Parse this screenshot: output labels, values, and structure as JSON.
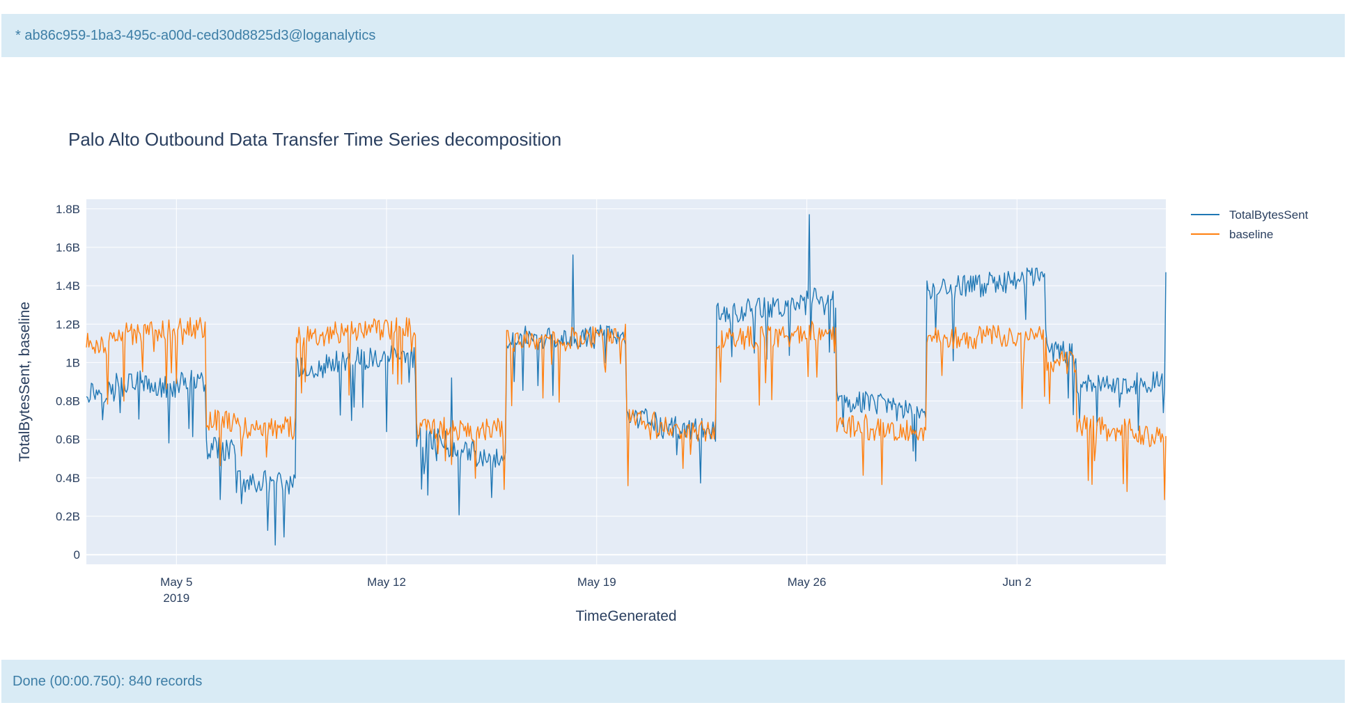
{
  "header": {
    "connection_label": "* ab86c959-1ba3-495c-a00d-ced30d8825d3@loganalytics"
  },
  "footer": {
    "status_text": "Done (00:00.750): 840 records"
  },
  "colors": {
    "plot_background": "#e5ecf6",
    "grid": "#ffffff",
    "text": "#2a3f5f",
    "series_total": "#1f77b4",
    "series_baseline": "#ff7f0e",
    "bar_background": "#d9ebf5",
    "bar_text": "#3d7ea6"
  },
  "chart_data": {
    "type": "line",
    "title": "Palo Alto Outbound Data Transfer Time Series decomposition",
    "xlabel": "TimeGenerated",
    "ylabel": "TotalBytesSent, baseline",
    "x_range": [
      "2019-05-02T00:00",
      "2019-06-06T23:00"
    ],
    "x_interval_hours": 1,
    "ylim": [
      -50000000,
      1850000000
    ],
    "y_ticks": [
      0,
      200000000,
      400000000,
      600000000,
      800000000,
      1000000000,
      1200000000,
      1400000000,
      1600000000,
      1800000000
    ],
    "y_tick_labels": [
      "0",
      "0.2B",
      "0.4B",
      "0.6B",
      "0.8B",
      "1B",
      "1.2B",
      "1.4B",
      "1.6B",
      "1.8B"
    ],
    "x_ticks": [
      "2019-05-05",
      "2019-05-12",
      "2019-05-19",
      "2019-05-26",
      "2019-06-02"
    ],
    "x_tick_labels": [
      "May 5",
      "May 12",
      "May 19",
      "May 26",
      "Jun 2"
    ],
    "x_tick_sublabel": "2019",
    "grid": true,
    "legend_position": "top-right",
    "series": [
      {
        "name": "TotalBytesSent",
        "segments": [
          {
            "start": "2019-05-02",
            "days": 1,
            "level": 0.85
          },
          {
            "start": "2019-05-03",
            "days": 1,
            "level": 0.9
          },
          {
            "start": "2019-05-04",
            "days": 1,
            "level": 0.87
          },
          {
            "start": "2019-05-05",
            "days": 1,
            "level": 0.9
          },
          {
            "start": "2019-05-06",
            "days": 1,
            "level": 0.55
          },
          {
            "start": "2019-05-07",
            "days": 1,
            "level": 0.38
          },
          {
            "start": "2019-05-08",
            "days": 1,
            "level": 0.37
          },
          {
            "start": "2019-05-09",
            "days": 1,
            "level": 0.97
          },
          {
            "start": "2019-05-10",
            "days": 1,
            "level": 1.0
          },
          {
            "start": "2019-05-11",
            "days": 1,
            "level": 1.02
          },
          {
            "start": "2019-05-12",
            "days": 1,
            "level": 1.03
          },
          {
            "start": "2019-05-13",
            "days": 1,
            "level": 0.6
          },
          {
            "start": "2019-05-14",
            "days": 1,
            "level": 0.55
          },
          {
            "start": "2019-05-15",
            "days": 1,
            "level": 0.5
          },
          {
            "start": "2019-05-16",
            "days": 1,
            "level": 1.13
          },
          {
            "start": "2019-05-17",
            "days": 1,
            "level": 1.12
          },
          {
            "start": "2019-05-18",
            "days": 1,
            "level": 1.13
          },
          {
            "start": "2019-05-19",
            "days": 1,
            "level": 1.15
          },
          {
            "start": "2019-05-20",
            "days": 1,
            "level": 0.7
          },
          {
            "start": "2019-05-21",
            "days": 1,
            "level": 0.66
          },
          {
            "start": "2019-05-22",
            "days": 1,
            "level": 0.65
          },
          {
            "start": "2019-05-23",
            "days": 1,
            "level": 1.25
          },
          {
            "start": "2019-05-24",
            "days": 1,
            "level": 1.28
          },
          {
            "start": "2019-05-25",
            "days": 1,
            "level": 1.3
          },
          {
            "start": "2019-05-26",
            "days": 1,
            "level": 1.33
          },
          {
            "start": "2019-05-27",
            "days": 1,
            "level": 0.8
          },
          {
            "start": "2019-05-28",
            "days": 1,
            "level": 0.78
          },
          {
            "start": "2019-05-29",
            "days": 1,
            "level": 0.75
          },
          {
            "start": "2019-05-30",
            "days": 1,
            "level": 1.38
          },
          {
            "start": "2019-05-31",
            "days": 1,
            "level": 1.4
          },
          {
            "start": "2019-06-01",
            "days": 1,
            "level": 1.42
          },
          {
            "start": "2019-06-02",
            "days": 1,
            "level": 1.44
          },
          {
            "start": "2019-06-03",
            "days": 1,
            "level": 1.05
          },
          {
            "start": "2019-06-04",
            "days": 1,
            "level": 0.88
          },
          {
            "start": "2019-06-05",
            "days": 1,
            "level": 0.88
          },
          {
            "start": "2019-06-06",
            "days": 1,
            "level": 0.9
          }
        ],
        "spikes": [
          {
            "x": "2019-05-08T07:00",
            "value": 0.05
          },
          {
            "x": "2019-05-14T04:00",
            "value": 0.92
          },
          {
            "x": "2019-05-18T05:00",
            "value": 1.56
          },
          {
            "x": "2019-05-26T02:00",
            "value": 1.77
          },
          {
            "x": "2019-06-06T23:00",
            "value": 1.47
          }
        ]
      },
      {
        "name": "baseline",
        "segments": [
          {
            "start": "2019-05-02",
            "days": 1,
            "level": 1.1
          },
          {
            "start": "2019-05-03",
            "days": 1,
            "level": 1.15
          },
          {
            "start": "2019-05-04",
            "days": 1,
            "level": 1.17
          },
          {
            "start": "2019-05-05",
            "days": 1,
            "level": 1.18
          },
          {
            "start": "2019-05-06",
            "days": 1,
            "level": 0.7
          },
          {
            "start": "2019-05-07",
            "days": 1,
            "level": 0.66
          },
          {
            "start": "2019-05-08",
            "days": 1,
            "level": 0.66
          },
          {
            "start": "2019-05-09",
            "days": 1,
            "level": 1.13
          },
          {
            "start": "2019-05-10",
            "days": 1,
            "level": 1.16
          },
          {
            "start": "2019-05-11",
            "days": 1,
            "level": 1.17
          },
          {
            "start": "2019-05-12",
            "days": 1,
            "level": 1.18
          },
          {
            "start": "2019-05-13",
            "days": 1,
            "level": 0.66
          },
          {
            "start": "2019-05-14",
            "days": 1,
            "level": 0.65
          },
          {
            "start": "2019-05-15",
            "days": 1,
            "level": 0.65
          },
          {
            "start": "2019-05-16",
            "days": 1,
            "level": 1.13
          },
          {
            "start": "2019-05-17",
            "days": 1,
            "level": 1.12
          },
          {
            "start": "2019-05-18",
            "days": 1,
            "level": 1.13
          },
          {
            "start": "2019-05-19",
            "days": 1,
            "level": 1.15
          },
          {
            "start": "2019-05-20",
            "days": 1,
            "level": 0.7
          },
          {
            "start": "2019-05-21",
            "days": 1,
            "level": 0.66
          },
          {
            "start": "2019-05-22",
            "days": 1,
            "level": 0.65
          },
          {
            "start": "2019-05-23",
            "days": 1,
            "level": 1.12
          },
          {
            "start": "2019-05-24",
            "days": 1,
            "level": 1.13
          },
          {
            "start": "2019-05-25",
            "days": 1,
            "level": 1.14
          },
          {
            "start": "2019-05-26",
            "days": 1,
            "level": 1.16
          },
          {
            "start": "2019-05-27",
            "days": 1,
            "level": 0.67
          },
          {
            "start": "2019-05-28",
            "days": 1,
            "level": 0.65
          },
          {
            "start": "2019-05-29",
            "days": 1,
            "level": 0.65
          },
          {
            "start": "2019-05-30",
            "days": 1,
            "level": 1.13
          },
          {
            "start": "2019-05-31",
            "days": 1,
            "level": 1.13
          },
          {
            "start": "2019-06-01",
            "days": 1,
            "level": 1.14
          },
          {
            "start": "2019-06-02",
            "days": 1,
            "level": 1.16
          },
          {
            "start": "2019-06-03",
            "days": 1,
            "level": 1.0
          },
          {
            "start": "2019-06-04",
            "days": 1,
            "level": 0.67
          },
          {
            "start": "2019-06-05",
            "days": 1,
            "level": 0.65
          },
          {
            "start": "2019-06-06",
            "days": 1,
            "level": 0.62
          }
        ],
        "spikes": []
      }
    ],
    "value_unit": "billion bytes"
  }
}
